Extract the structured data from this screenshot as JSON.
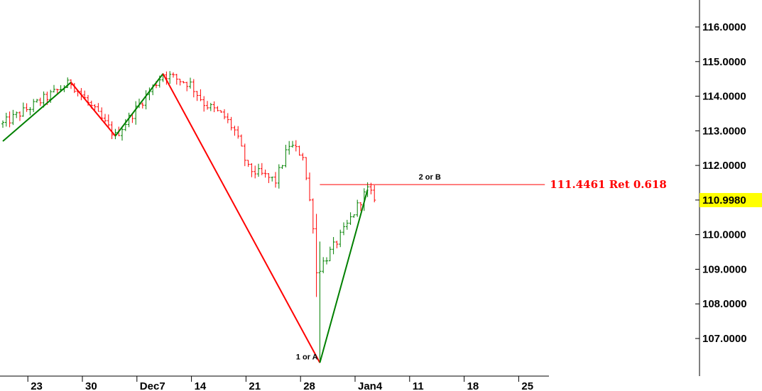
{
  "chart_data": {
    "type": "ohlc",
    "title": "",
    "xlabel": "",
    "ylabel": "",
    "ylim": [
      106.1,
      116.7
    ],
    "y_ticks": [
      107,
      108,
      109,
      110,
      111,
      112,
      113,
      114,
      115,
      116
    ],
    "y_tick_labels": [
      "107.0000",
      "108.0000",
      "109.0000",
      "110.0000",
      "111.0000",
      "112.0000",
      "113.0000",
      "114.0000",
      "115.0000",
      "116.0000"
    ],
    "x_tick_labels": [
      "23",
      "30",
      "Dec7",
      "14",
      "21",
      "28",
      "Jan4",
      "11",
      "18",
      "25"
    ],
    "x_tick_bar_index": [
      9,
      25,
      41,
      57,
      73,
      89,
      105,
      121,
      137,
      153
    ],
    "bars_per_week": 16,
    "last_price": 110.998,
    "last_price_label": "110.9980",
    "last_price_color": "#ffff00",
    "up_color": "#008000",
    "down_color": "#ff0000",
    "price_path": [
      [
        0,
        113.2
      ],
      [
        20,
        114.4
      ],
      [
        33,
        112.85
      ],
      [
        47,
        114.65
      ],
      [
        55,
        114.35
      ],
      [
        59,
        113.8
      ],
      [
        65,
        113.4
      ],
      [
        68,
        113.0
      ],
      [
        72,
        111.9
      ],
      [
        80,
        111.55
      ],
      [
        84,
        112.6
      ],
      [
        88,
        112.3
      ],
      [
        91,
        110.3
      ],
      [
        92,
        108.9
      ],
      [
        96,
        109.5
      ],
      [
        100,
        110.1
      ],
      [
        105,
        111.0
      ],
      [
        107,
        111.3
      ],
      [
        109,
        111.0
      ]
    ],
    "zigzag": [
      {
        "from": [
          0,
          112.7
        ],
        "to": [
          20,
          114.4
        ],
        "color": "#008000"
      },
      {
        "from": [
          20,
          114.4
        ],
        "to": [
          33,
          112.85
        ],
        "color": "#ff0000"
      },
      {
        "from": [
          33,
          112.85
        ],
        "to": [
          47,
          114.65
        ],
        "color": "#008000"
      },
      {
        "from": [
          47,
          114.65
        ],
        "to": [
          93,
          106.3
        ],
        "color": "#ff0000"
      },
      {
        "from": [
          93,
          106.3
        ],
        "to": [
          107,
          111.3
        ],
        "color": "#008000"
      }
    ],
    "retracement": {
      "level": 111.4461,
      "start_bar": 93,
      "end_bar": 159,
      "label": "111.4461 Ret 0.618",
      "color": "#ff0000"
    },
    "annotations": [
      {
        "text": "2 or B",
        "bar": 122,
        "y": 111.55
      },
      {
        "text": "1 or A",
        "bar": 86,
        "y": 106.35
      }
    ]
  }
}
